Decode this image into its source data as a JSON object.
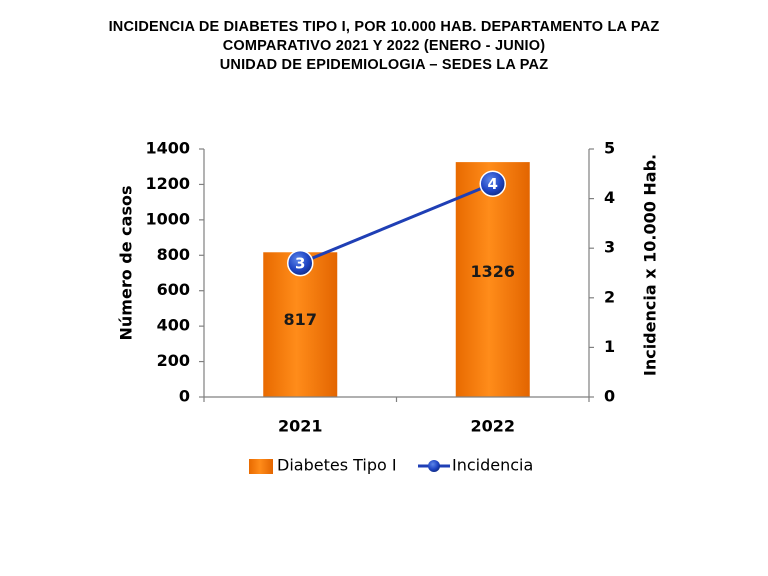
{
  "chart_data": {
    "type": "bar",
    "title": "INCIDENCIA  DE DIABETES  TIPO I, POR 10.000 HAB. DEPARTAMENTO  LA PAZ",
    "subtitle": "COMPARATIVO  2021 Y 2022 (ENERO - JUNIO)",
    "source": "UNIDAD DE EPIDEMIOLOGIA – SEDES LA PAZ",
    "categories": [
      "2021",
      "2022"
    ],
    "ylabel": "Número de casos",
    "y2label": "Incidencia x 10.000 Hab.",
    "ylim": [
      0,
      1400
    ],
    "y2lim": [
      0,
      5
    ],
    "yticks": [
      "0",
      "200",
      "400",
      "600",
      "800",
      "1000",
      "1200",
      "1400"
    ],
    "y2ticks": [
      "0",
      "1",
      "2",
      "3",
      "4",
      "5"
    ],
    "grid": false,
    "legend_position": "bottom",
    "series": [
      {
        "name": "Diabetes Tipo I",
        "type": "bar",
        "axis": "left",
        "color": "#f07b12",
        "values": [
          817,
          1326
        ],
        "labels": [
          "817",
          "1326"
        ]
      },
      {
        "name": "Incidencia",
        "type": "line",
        "axis": "right",
        "color": "#1f3fb5",
        "values": [
          2.7,
          4.3
        ],
        "labels": [
          "3",
          "4"
        ]
      }
    ]
  }
}
